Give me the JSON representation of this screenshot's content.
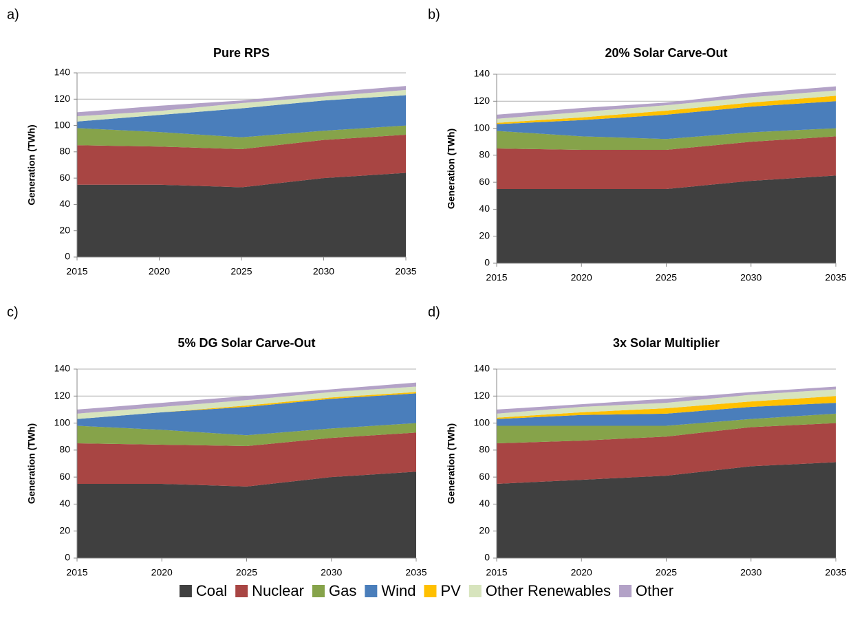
{
  "chart_data": [
    {
      "type": "area",
      "panel": "a)",
      "title": "Pure RPS",
      "y_label": "Generation (TWh)",
      "x": [
        2015,
        2020,
        2025,
        2030,
        2035
      ],
      "xlim": [
        2015,
        2035
      ],
      "xticks": [
        2015,
        2020,
        2025,
        2030,
        2035
      ],
      "ylim": [
        0,
        140
      ],
      "yticks": [
        0,
        20,
        40,
        60,
        80,
        100,
        120,
        140
      ],
      "grid": true,
      "stacked": true,
      "series": [
        {
          "values": [
            55,
            55,
            53,
            60,
            64
          ]
        },
        {
          "values": [
            30,
            29,
            29,
            29,
            29
          ]
        },
        {
          "values": [
            13,
            11,
            9,
            7,
            7
          ]
        },
        {
          "values": [
            5,
            13,
            22,
            23,
            23
          ]
        },
        {
          "values": [
            0,
            0,
            0,
            0,
            0
          ]
        },
        {
          "values": [
            4,
            3,
            4,
            3,
            4
          ]
        },
        {
          "values": [
            3,
            4,
            2,
            3,
            3
          ]
        }
      ]
    },
    {
      "type": "area",
      "panel": "b)",
      "title": "20% Solar Carve-Out",
      "y_label": "Generation (TWh)",
      "x": [
        2015,
        2020,
        2025,
        2030,
        2035
      ],
      "xlim": [
        2015,
        2035
      ],
      "xticks": [
        2015,
        2020,
        2025,
        2030,
        2035
      ],
      "ylim": [
        0,
        140
      ],
      "yticks": [
        0,
        20,
        40,
        60,
        80,
        100,
        120,
        140
      ],
      "grid": true,
      "stacked": true,
      "series": [
        {
          "values": [
            55,
            55,
            55,
            61,
            65
          ]
        },
        {
          "values": [
            30,
            29,
            29,
            29,
            29
          ]
        },
        {
          "values": [
            13,
            10,
            8,
            7,
            6
          ]
        },
        {
          "values": [
            5,
            12,
            18,
            19,
            20
          ]
        },
        {
          "values": [
            1,
            2,
            3,
            3,
            4
          ]
        },
        {
          "values": [
            3,
            4,
            4,
            4,
            4
          ]
        },
        {
          "values": [
            3,
            3,
            2,
            3,
            3
          ]
        }
      ]
    },
    {
      "type": "area",
      "panel": "c)",
      "title": "5% DG Solar Carve-Out",
      "y_label": "Generation (TWh)",
      "x": [
        2015,
        2020,
        2025,
        2030,
        2035
      ],
      "xlim": [
        2015,
        2035
      ],
      "xticks": [
        2015,
        2020,
        2025,
        2030,
        2035
      ],
      "ylim": [
        0,
        140
      ],
      "yticks": [
        0,
        20,
        40,
        60,
        80,
        100,
        120,
        140
      ],
      "grid": true,
      "stacked": true,
      "series": [
        {
          "values": [
            55,
            55,
            53,
            60,
            64
          ]
        },
        {
          "values": [
            30,
            29,
            30,
            29,
            29
          ]
        },
        {
          "values": [
            13,
            11,
            8,
            7,
            7
          ]
        },
        {
          "values": [
            5,
            13,
            21,
            22,
            22
          ]
        },
        {
          "values": [
            0,
            0,
            1,
            1,
            1
          ]
        },
        {
          "values": [
            4,
            4,
            4,
            4,
            4
          ]
        },
        {
          "values": [
            3,
            3,
            3,
            2,
            3
          ]
        }
      ]
    },
    {
      "type": "area",
      "panel": "d)",
      "title": "3x Solar Multiplier",
      "y_label": "Generation (TWh)",
      "x": [
        2015,
        2020,
        2025,
        2030,
        2035
      ],
      "xlim": [
        2015,
        2035
      ],
      "xticks": [
        2015,
        2020,
        2025,
        2030,
        2035
      ],
      "ylim": [
        0,
        140
      ],
      "yticks": [
        0,
        20,
        40,
        60,
        80,
        100,
        120,
        140
      ],
      "grid": true,
      "stacked": true,
      "series": [
        {
          "values": [
            55,
            58,
            61,
            68,
            71
          ]
        },
        {
          "values": [
            30,
            29,
            29,
            29,
            29
          ]
        },
        {
          "values": [
            13,
            11,
            8,
            6,
            7
          ]
        },
        {
          "values": [
            5,
            8,
            9,
            9,
            8
          ]
        },
        {
          "values": [
            1,
            2,
            4,
            4,
            5
          ]
        },
        {
          "values": [
            3,
            4,
            4,
            5,
            5
          ]
        },
        {
          "values": [
            3,
            2,
            3,
            2,
            2
          ]
        }
      ]
    }
  ],
  "legend": [
    {
      "name": "Coal",
      "color": "#404040"
    },
    {
      "name": "Nuclear",
      "color": "#a84543"
    },
    {
      "name": "Gas",
      "color": "#86a34a"
    },
    {
      "name": "Wind",
      "color": "#4a7ebb"
    },
    {
      "name": "PV",
      "color": "#ffc000"
    },
    {
      "name": "Other Renewables",
      "color": "#d7e4bd"
    },
    {
      "name": "Other",
      "color": "#b3a2c7"
    }
  ]
}
